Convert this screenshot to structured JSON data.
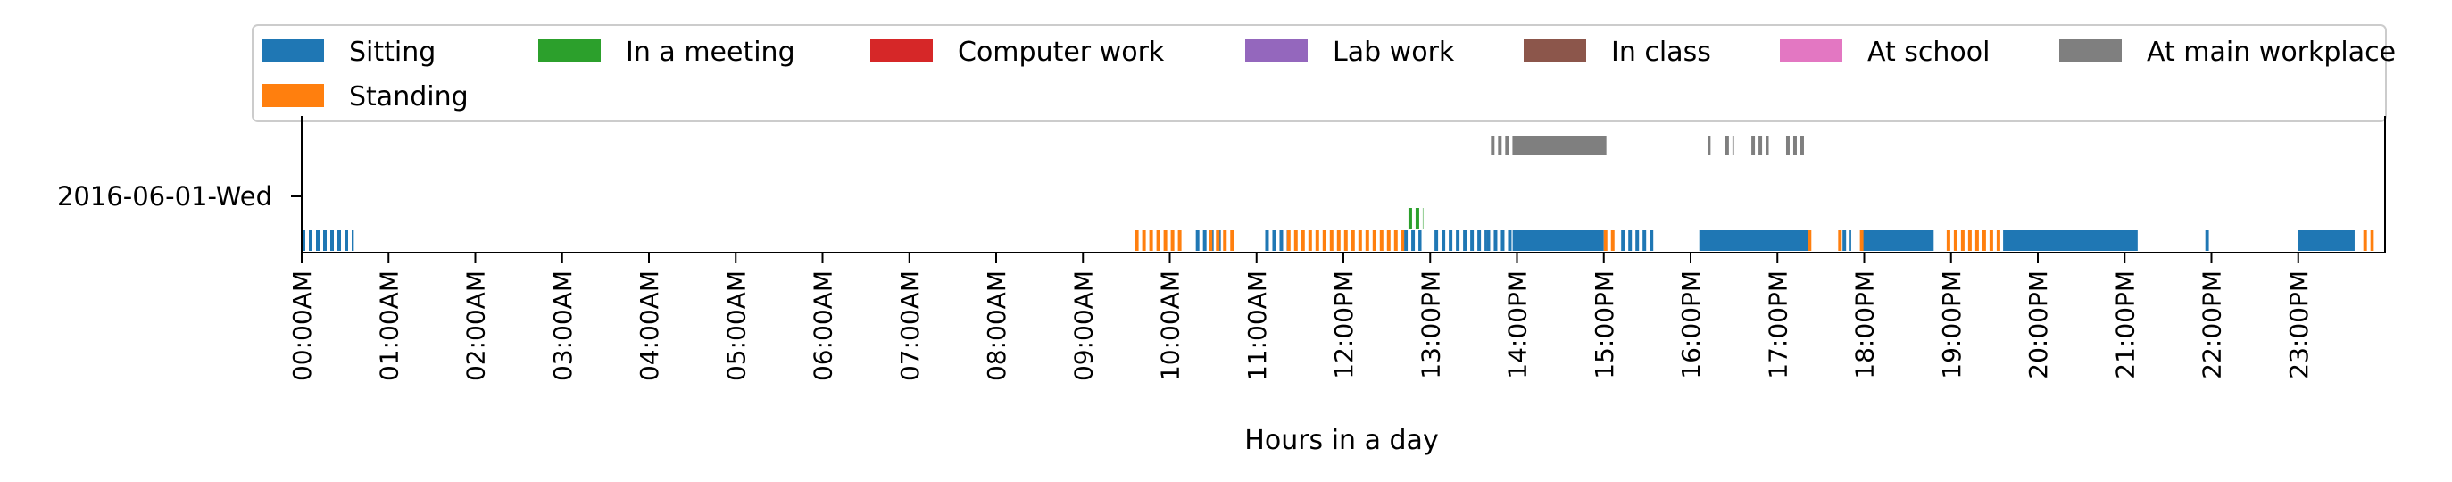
{
  "chart_data": {
    "type": "timeline",
    "xlabel": "Hours in a day",
    "ylabel": "",
    "row_label": "2016-06-01-Wed",
    "xlim": [
      0,
      24
    ],
    "x_tick_labels": [
      "00:00AM",
      "01:00AM",
      "02:00AM",
      "03:00AM",
      "04:00AM",
      "05:00AM",
      "06:00AM",
      "07:00AM",
      "08:00AM",
      "09:00AM",
      "10:00AM",
      "11:00AM",
      "12:00PM",
      "13:00PM",
      "14:00PM",
      "15:00PM",
      "16:00PM",
      "17:00PM",
      "18:00PM",
      "19:00PM",
      "20:00PM",
      "21:00PM",
      "22:00PM",
      "23:00PM"
    ],
    "legend_position": "top",
    "series": [
      {
        "name": "Sitting",
        "color": "#1f77b4",
        "level": 0,
        "intervals": [
          [
            0.0,
            0.6
          ],
          [
            10.3,
            10.6
          ],
          [
            11.1,
            11.4
          ],
          [
            12.7,
            12.9
          ],
          [
            13.05,
            13.65
          ],
          [
            13.65,
            13.95
          ],
          [
            13.95,
            15.0
          ],
          [
            15.2,
            15.6
          ],
          [
            16.1,
            17.35
          ],
          [
            17.75,
            17.85
          ],
          [
            17.98,
            18.8
          ],
          [
            19.6,
            21.15
          ],
          [
            21.93,
            21.97
          ],
          [
            23.0,
            23.65
          ]
        ]
      },
      {
        "name": "Standing",
        "color": "#ff7f0e",
        "level": 0,
        "intervals": [
          [
            9.6,
            10.15
          ],
          [
            10.45,
            10.75
          ],
          [
            11.35,
            12.7
          ],
          [
            15.0,
            15.15
          ],
          [
            17.35,
            17.4
          ],
          [
            17.7,
            17.75
          ],
          [
            17.95,
            18.0
          ],
          [
            18.95,
            19.6
          ],
          [
            23.75,
            23.87
          ]
        ]
      },
      {
        "name": "In a meeting",
        "color": "#2ca02c",
        "level": 1,
        "intervals": [
          [
            12.75,
            12.92
          ]
        ]
      },
      {
        "name": "Computer work",
        "color": "#d62728",
        "level": 2,
        "intervals": []
      },
      {
        "name": "Lab work",
        "color": "#9467bd",
        "level": 3,
        "intervals": []
      },
      {
        "name": "In class",
        "color": "#8c564b",
        "level": 4,
        "intervals": []
      },
      {
        "name": "At school",
        "color": "#e377c2",
        "level": 5,
        "intervals": []
      },
      {
        "name": "At main workplace",
        "color": "#7f7f7f",
        "level": 6,
        "intervals": [
          [
            13.7,
            13.95
          ],
          [
            13.95,
            15.03
          ],
          [
            16.2,
            16.23
          ],
          [
            16.4,
            16.5
          ],
          [
            16.7,
            16.9
          ],
          [
            17.1,
            17.32
          ]
        ]
      }
    ]
  }
}
